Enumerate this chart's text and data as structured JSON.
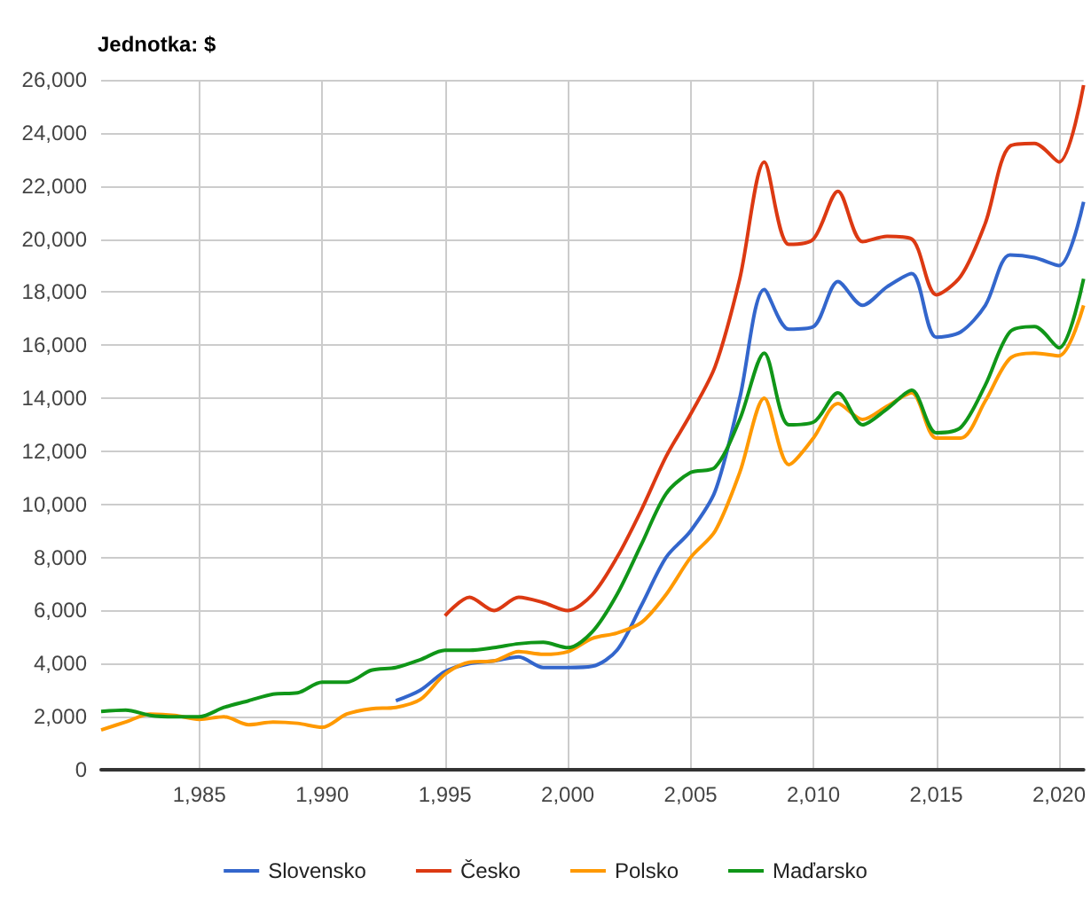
{
  "chart_data": {
    "type": "line",
    "title": "Jednotka: $",
    "x": [
      1981,
      1982,
      1983,
      1984,
      1985,
      1986,
      1987,
      1988,
      1989,
      1990,
      1991,
      1992,
      1993,
      1994,
      1995,
      1996,
      1997,
      1998,
      1999,
      2000,
      2001,
      2002,
      2003,
      2004,
      2005,
      2006,
      2007,
      2008,
      2009,
      2010,
      2011,
      2012,
      2013,
      2014,
      2015,
      2016,
      2017,
      2018,
      2019,
      2020,
      2021
    ],
    "series": [
      {
        "name": "Slovensko",
        "color": "#3366cc",
        "values": [
          null,
          null,
          null,
          null,
          null,
          null,
          null,
          null,
          null,
          null,
          null,
          null,
          2600,
          3000,
          3700,
          4000,
          4100,
          4250,
          3850,
          3850,
          3900,
          4500,
          6200,
          8000,
          9000,
          10500,
          14000,
          18100,
          16600,
          16700,
          18400,
          17500,
          18200,
          18700,
          16300,
          16500,
          17500,
          19400,
          19300,
          19000,
          21400
        ]
      },
      {
        "name": "Česko",
        "color": "#dc3912",
        "values": [
          null,
          null,
          null,
          null,
          null,
          null,
          null,
          null,
          null,
          null,
          null,
          null,
          null,
          null,
          5800,
          6500,
          6000,
          6500,
          6300,
          6000,
          6600,
          8000,
          9800,
          11800,
          13400,
          15200,
          18500,
          22900,
          19800,
          20000,
          21800,
          19900,
          20100,
          20000,
          17900,
          18600,
          20600,
          23500,
          23600,
          22900,
          25800
        ]
      },
      {
        "name": "Polsko",
        "color": "#ff9900",
        "values": [
          1500,
          1800,
          2100,
          2050,
          1900,
          2000,
          1700,
          1800,
          1750,
          1600,
          2100,
          2300,
          2350,
          2650,
          3600,
          4050,
          4100,
          4450,
          4350,
          4450,
          4950,
          5150,
          5550,
          6600,
          8000,
          9000,
          11200,
          14000,
          11500,
          12500,
          13800,
          13200,
          13700,
          14200,
          12500,
          12500,
          13900,
          15500,
          15700,
          15600,
          17500
        ]
      },
      {
        "name": "Maďarsko",
        "color": "#109618",
        "values": [
          2200,
          2250,
          2050,
          2000,
          2000,
          2350,
          2600,
          2850,
          2900,
          3300,
          3300,
          3750,
          3850,
          4150,
          4500,
          4500,
          4600,
          4750,
          4800,
          4600,
          5200,
          6600,
          8500,
          10400,
          11200,
          11400,
          13200,
          15700,
          13000,
          13100,
          14200,
          13000,
          13600,
          14300,
          12700,
          12900,
          14500,
          16500,
          16700,
          15900,
          18500
        ]
      }
    ],
    "xlim": [
      1981,
      2021
    ],
    "xticks": [
      {
        "value": 1985,
        "label": "1,985"
      },
      {
        "value": 1990,
        "label": "1,990"
      },
      {
        "value": 1995,
        "label": "1,995"
      },
      {
        "value": 2000,
        "label": "2,000"
      },
      {
        "value": 2005,
        "label": "2,005"
      },
      {
        "value": 2010,
        "label": "2,010"
      },
      {
        "value": 2015,
        "label": "2,015"
      },
      {
        "value": 2020,
        "label": "2,020"
      }
    ],
    "ylim": [
      0,
      26000
    ],
    "yticks": [
      0,
      {
        "value": 2000,
        "label": "2,000"
      },
      {
        "value": 4000,
        "label": "4,000"
      },
      {
        "value": 6000,
        "label": "6,000"
      },
      {
        "value": 8000,
        "label": "8,000"
      },
      {
        "value": 10000,
        "label": "10,000"
      },
      {
        "value": 12000,
        "label": "12,000"
      },
      {
        "value": 14000,
        "label": "14,000"
      },
      {
        "value": 16000,
        "label": "16,000"
      },
      {
        "value": 18000,
        "label": "18,000"
      },
      {
        "value": 20000,
        "label": "20,000"
      },
      {
        "value": 22000,
        "label": "22,000"
      },
      {
        "value": 24000,
        "label": "24,000"
      },
      {
        "value": 26000,
        "label": "26,000"
      }
    ],
    "grid": true,
    "legend": "bottom",
    "marker": "none",
    "line_style": "solid"
  }
}
